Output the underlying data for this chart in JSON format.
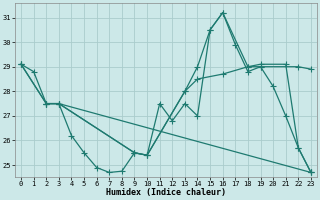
{
  "xlabel": "Humidex (Indice chaleur)",
  "bg_color": "#cce8e8",
  "line_color": "#1e7a70",
  "grid_color": "#aacccc",
  "ylim": [
    24.5,
    31.6
  ],
  "xlim": [
    -0.5,
    23.5
  ],
  "yticks": [
    25,
    26,
    27,
    28,
    29,
    30,
    31
  ],
  "xticks": [
    0,
    1,
    2,
    3,
    4,
    5,
    6,
    7,
    8,
    9,
    10,
    11,
    12,
    13,
    14,
    15,
    16,
    17,
    18,
    19,
    20,
    21,
    22,
    23
  ],
  "line1_x": [
    0,
    1,
    2,
    3,
    4,
    5,
    6,
    7,
    8,
    9,
    10,
    11,
    12,
    13,
    14,
    15,
    16,
    17,
    18,
    19,
    20,
    21,
    22,
    23
  ],
  "line1_y": [
    29.1,
    28.8,
    27.5,
    27.5,
    26.2,
    25.5,
    24.9,
    24.7,
    24.75,
    25.5,
    25.4,
    27.5,
    26.8,
    27.5,
    27.0,
    30.5,
    31.2,
    29.9,
    28.8,
    29.0,
    28.2,
    27.0,
    25.7,
    24.7
  ],
  "line2_x": [
    0,
    2,
    3,
    9,
    10,
    13,
    14,
    16,
    18,
    19,
    22,
    23
  ],
  "line2_y": [
    29.1,
    27.5,
    27.5,
    25.5,
    25.4,
    28.0,
    28.5,
    28.7,
    29.0,
    29.0,
    29.0,
    28.9
  ],
  "line3_x": [
    0,
    2,
    3,
    9,
    10,
    13,
    14,
    15,
    16,
    18,
    19,
    21,
    22,
    23
  ],
  "line3_y": [
    29.1,
    27.5,
    27.5,
    25.5,
    25.4,
    28.0,
    29.0,
    30.5,
    31.2,
    29.0,
    29.1,
    29.1,
    25.7,
    24.7
  ],
  "line4_x": [
    2,
    3,
    23
  ],
  "line4_y": [
    27.5,
    27.5,
    24.7
  ]
}
